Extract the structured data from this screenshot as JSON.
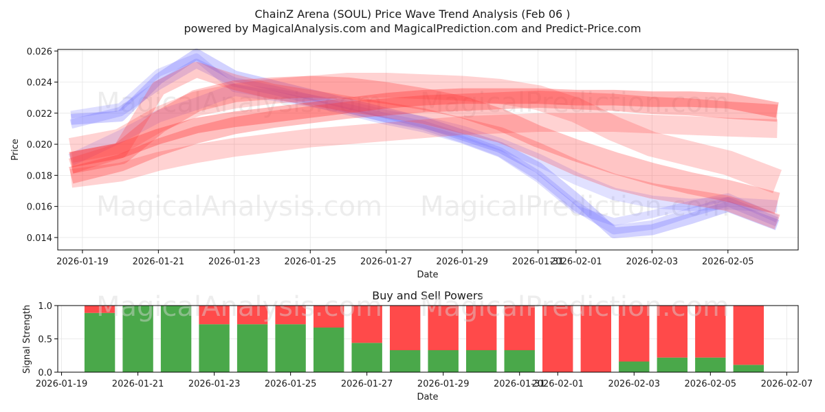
{
  "title_line1": "ChainZ Arena (SOUL) Price Wave Trend Analysis (Feb 06 )",
  "title_line2": "powered by MagicalAnalysis.com and MagicalPrediction.com and Predict-Price.com",
  "watermarks": [
    "MagicalAnalysis.com",
    "MagicalPrediction.com"
  ],
  "colors": {
    "blue": "#6a6aff",
    "red": "#ff3030",
    "green": "#4aa84a",
    "sell": "#ff4a4a"
  },
  "chart_data": [
    {
      "type": "line",
      "name": "price-waves",
      "xlabel": "Date",
      "ylabel": "Price",
      "xlim": [
        "2026-01-18.35",
        "2026-02-06.85"
      ],
      "ylim": [
        0.0132,
        0.0261
      ],
      "x_ticks": [
        "2026-01-19",
        "2026-01-21",
        "2026-01-23",
        "2026-01-25",
        "2026-01-27",
        "2026-01-29",
        "2026-01-31",
        "2026-02-01",
        "2026-02-03",
        "2026-02-05"
      ],
      "y_ticks": [
        "0.014",
        "0.016",
        "0.018",
        "0.020",
        "0.022",
        "0.024",
        "0.026"
      ],
      "x_dates": [
        "2026-01-18.7",
        "2026-01-20",
        "2026-01-21",
        "2026-01-22",
        "2026-01-23",
        "2026-01-24",
        "2026-01-25",
        "2026-01-26",
        "2026-01-27",
        "2026-01-28",
        "2026-01-29",
        "2026-01-30",
        "2026-01-31",
        "2026-02-01",
        "2026-02-02",
        "2026-02-03",
        "2026-02-04",
        "2026-02-05",
        "2026-02-06.3"
      ],
      "blue_series": [
        {
          "name": "blue-wave-1",
          "width": 0.0007,
          "opacity": 0.3,
          "values": [
            0.0216,
            0.0218,
            0.0242,
            0.0258,
            0.0244,
            0.0238,
            0.0232,
            0.0226,
            0.022,
            0.0214,
            0.0206,
            0.0198,
            0.0185,
            0.0165,
            0.0143,
            0.0145,
            0.0152,
            0.016,
            0.0148
          ]
        },
        {
          "name": "blue-wave-2",
          "width": 0.0006,
          "opacity": 0.25,
          "values": [
            0.0213,
            0.0221,
            0.0238,
            0.0252,
            0.024,
            0.0235,
            0.0229,
            0.0223,
            0.0217,
            0.0212,
            0.0204,
            0.0195,
            0.018,
            0.016,
            0.0145,
            0.0148,
            0.0156,
            0.0163,
            0.015
          ]
        },
        {
          "name": "blue-wave-3",
          "width": 0.0005,
          "opacity": 0.22,
          "values": [
            0.0219,
            0.0224,
            0.0246,
            0.0256,
            0.0236,
            0.0232,
            0.0227,
            0.0221,
            0.0215,
            0.021,
            0.0203,
            0.0194,
            0.0178,
            0.0158,
            0.015,
            0.0155,
            0.0161,
            0.0166,
            0.0152
          ]
        },
        {
          "name": "blue-wave-4",
          "width": 0.0008,
          "opacity": 0.2,
          "values": [
            0.019,
            0.0205,
            0.0218,
            0.0226,
            0.0235,
            0.0232,
            0.0228,
            0.0224,
            0.0218,
            0.0214,
            0.0208,
            0.02,
            0.019,
            0.0178,
            0.0168,
            0.0163,
            0.0161,
            0.0162,
            0.016
          ]
        }
      ],
      "red_series": [
        {
          "name": "red-wave-1",
          "width": 0.001,
          "opacity": 0.35,
          "values": [
            0.019,
            0.0196,
            0.0205,
            0.0212,
            0.0216,
            0.0219,
            0.0222,
            0.0225,
            0.0228,
            0.023,
            0.0231,
            0.0231,
            0.0231,
            0.023,
            0.023,
            0.0229,
            0.0229,
            0.0228,
            0.0222
          ]
        },
        {
          "name": "red-wave-2",
          "width": 0.0014,
          "opacity": 0.28,
          "values": [
            0.0188,
            0.0194,
            0.0214,
            0.0228,
            0.0234,
            0.0236,
            0.0237,
            0.0236,
            0.0233,
            0.0229,
            0.0224,
            0.0216,
            0.0205,
            0.0196,
            0.0188,
            0.0181,
            0.0175,
            0.017,
            0.0162
          ]
        },
        {
          "name": "red-wave-3",
          "width": 0.0012,
          "opacity": 0.22,
          "values": [
            0.0178,
            0.0182,
            0.0189,
            0.0194,
            0.0198,
            0.0201,
            0.0204,
            0.0206,
            0.0208,
            0.021,
            0.0212,
            0.0213,
            0.0214,
            0.0214,
            0.0214,
            0.0213,
            0.0212,
            0.0211,
            0.021
          ]
        },
        {
          "name": "red-wave-4",
          "width": 0.0016,
          "opacity": 0.22,
          "values": [
            0.0196,
            0.0202,
            0.0216,
            0.0226,
            0.0231,
            0.0234,
            0.0236,
            0.0238,
            0.0238,
            0.0237,
            0.0236,
            0.0234,
            0.023,
            0.0222,
            0.021,
            0.02,
            0.0194,
            0.0188,
            0.0176
          ]
        },
        {
          "name": "red-wave-5",
          "width": 0.001,
          "opacity": 0.25,
          "values": [
            0.0186,
            0.0196,
            0.0236,
            0.0248,
            0.024,
            0.0234,
            0.023,
            0.0226,
            0.0222,
            0.0218,
            0.0212,
            0.0206,
            0.0196,
            0.0185,
            0.0176,
            0.017,
            0.0166,
            0.0162,
            0.015
          ]
        },
        {
          "name": "red-wave-6",
          "width": 0.0011,
          "opacity": 0.3,
          "values": [
            0.018,
            0.0188,
            0.0198,
            0.0206,
            0.0212,
            0.0216,
            0.0219,
            0.0222,
            0.0224,
            0.0226,
            0.0227,
            0.0228,
            0.0229,
            0.0228,
            0.0227,
            0.0225,
            0.0224,
            0.0222,
            0.022
          ]
        }
      ]
    },
    {
      "type": "bar",
      "name": "buy-sell-powers",
      "title": "Buy and Sell Powers",
      "xlabel": "Date",
      "ylabel": "Signal Strength",
      "xlim": [
        "2026-01-18.9",
        "2026-02-07.3"
      ],
      "ylim": [
        0.0,
        1.0
      ],
      "x_ticks": [
        "2026-01-19",
        "2026-01-21",
        "2026-01-23",
        "2026-01-25",
        "2026-01-27",
        "2026-01-29",
        "2026-01-31",
        "2026-02-01",
        "2026-02-03",
        "2026-02-05",
        "2026-02-07"
      ],
      "y_ticks": [
        "0.0",
        "0.5",
        "1.0"
      ],
      "categories": [
        "2026-01-20",
        "2026-01-21",
        "2026-01-22",
        "2026-01-23",
        "2026-01-24",
        "2026-01-25",
        "2026-01-26",
        "2026-01-27",
        "2026-01-28",
        "2026-01-29",
        "2026-01-30",
        "2026-01-31",
        "2026-02-01",
        "2026-02-02",
        "2026-02-03",
        "2026-02-04",
        "2026-02-05",
        "2026-02-06"
      ],
      "series": [
        {
          "name": "Buy",
          "values": [
            0.89,
            1.0,
            1.0,
            0.72,
            0.72,
            0.72,
            0.67,
            0.44,
            0.33,
            0.33,
            0.33,
            0.33,
            0.0,
            0.0,
            0.16,
            0.22,
            0.22,
            0.11
          ]
        },
        {
          "name": "Sell",
          "values": [
            0.11,
            0.0,
            0.0,
            0.28,
            0.28,
            0.28,
            0.33,
            0.56,
            0.67,
            0.67,
            0.67,
            0.67,
            1.0,
            1.0,
            0.84,
            0.78,
            0.78,
            0.89
          ]
        }
      ]
    }
  ]
}
